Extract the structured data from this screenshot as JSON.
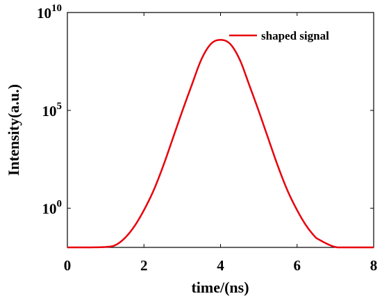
{
  "chart_data": {
    "type": "line",
    "xlabel": "time/(ns)",
    "ylabel": "Intensity(a.u.)",
    "yscale": "log",
    "xlim": [
      0,
      8
    ],
    "ylim": [
      0.01,
      10000000000
    ],
    "x_ticks": [
      0,
      2,
      4,
      6,
      8
    ],
    "x_tick_labels": [
      "0",
      "2",
      "4",
      "6",
      "8"
    ],
    "y_ticks": [
      {
        "value": 1,
        "base": "10",
        "exp": "0"
      },
      {
        "value": 100000,
        "base": "10",
        "exp": "5"
      },
      {
        "value": 10000000000,
        "base": "10",
        "exp": "10"
      }
    ],
    "grid": false,
    "legend": {
      "position": "top-right"
    },
    "series": [
      {
        "name": "shaped signal",
        "color": "#e8000b",
        "x": [
          0.0,
          0.5,
          1.0,
          1.25,
          1.5,
          1.75,
          2.0,
          2.25,
          2.5,
          2.75,
          3.0,
          3.25,
          3.5,
          3.75,
          4.0,
          4.25,
          4.5,
          4.75,
          5.0,
          5.25,
          5.5,
          5.75,
          6.0,
          6.25,
          6.5,
          7.0,
          7.5,
          8.0
        ],
        "y": [
          0.01,
          0.01,
          0.0105,
          0.013,
          0.03,
          0.12,
          0.8,
          8,
          140,
          3500,
          90000,
          2000000,
          40000000,
          250000000,
          400000000,
          250000000,
          40000000,
          2000000,
          90000,
          3500,
          140,
          8,
          0.8,
          0.12,
          0.03,
          0.0105,
          0.01,
          0.01
        ]
      }
    ]
  }
}
